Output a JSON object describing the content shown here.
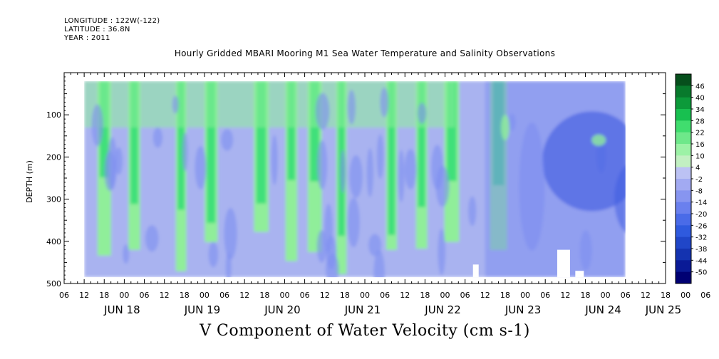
{
  "header": {
    "longitude": "LONGITUDE : 122W(-122)",
    "latitude": "LATITUDE : 36.8N",
    "year": "YEAR : 2011"
  },
  "plot_title": "Hourly Gridded MBARI Mooring M1 Sea Water Temperature and Salinity Observations",
  "bottom_title": "V Component of Water Velocity (cm s-1)",
  "colors": {
    "green_bright": "#3fe07a",
    "green_light": "#90ee9a",
    "blue_light": "#a9b3f0",
    "blue_mid": "#7d8ef0",
    "blue_dark": "#3c5ae0",
    "no_data": "#ffffff"
  },
  "chart_data": {
    "type": "heatmap",
    "variable": "V Component of Water Velocity (cm s-1)",
    "ylabel": "DEPTH (m)",
    "ylim": [
      500,
      0
    ],
    "y_ticks": [
      100,
      200,
      300,
      400,
      500
    ],
    "x_range_hours": [
      0,
      180
    ],
    "x_hour_ticks": [
      "06",
      "12",
      "18",
      "00",
      "06",
      "12",
      "18",
      "00",
      "06",
      "12",
      "18",
      "00",
      "06",
      "12",
      "18",
      "00",
      "06",
      "12",
      "18",
      "00",
      "06",
      "12",
      "18",
      "00",
      "06",
      "12",
      "18",
      "00",
      "06",
      "12",
      "18",
      "00",
      "06"
    ],
    "x_day_labels": [
      "JUN 18",
      "JUN 19",
      "JUN 20",
      "JUN 21",
      "JUN 22",
      "JUN 23",
      "JUN 24",
      "JUN 25"
    ],
    "data_extent": {
      "time_start": "JUN 18 12",
      "time_end": "JUN 25 06",
      "depth_min": 20,
      "depth_max": 485
    },
    "colorbar_levels": [
      -50,
      -44,
      -38,
      -32,
      -26,
      -20,
      -14,
      -8,
      -2,
      4,
      10,
      16,
      22,
      28,
      34,
      40,
      46
    ],
    "colorbar_labels": [
      "46",
      "40",
      "34",
      "28",
      "22",
      "16",
      "10",
      "4",
      "-2",
      "-8",
      "-14",
      "-20",
      "-26",
      "-32",
      "-38",
      "-44",
      "-50"
    ],
    "colorbar_colors": [
      "#000073",
      "#0a1a96",
      "#1433b0",
      "#2046c8",
      "#2f5ade",
      "#4a6be8",
      "#6a80ee",
      "#8795f0",
      "#a2aaf2",
      "#bcc2f4",
      "#c2f0c2",
      "#9cf2a6",
      "#6ee88a",
      "#40dd6e",
      "#18c050",
      "#0c9a3a",
      "#087a2c",
      "#064f1c"
    ],
    "field_description": {
      "green_columns_day_offsets_hours": [
        6,
        15,
        29,
        38,
        53,
        62,
        69,
        77,
        92,
        101,
        110,
        124
      ],
      "value_units": "cm s-1"
    }
  }
}
